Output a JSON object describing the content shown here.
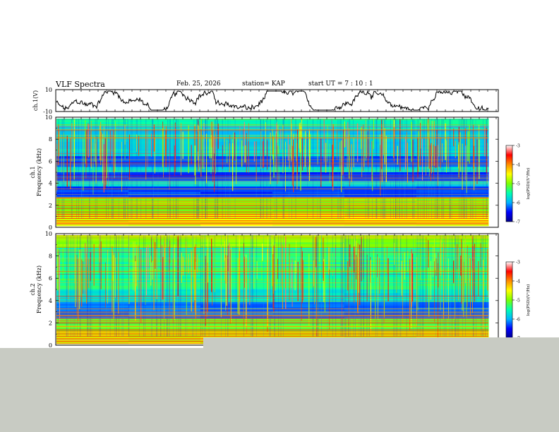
{
  "header": {
    "title": "VLF Spectra",
    "date": "Feb. 25, 2026",
    "station": "station= KAP",
    "start": "start  UT =   7 : 10 : 1"
  },
  "chart_data": [
    {
      "type": "line",
      "panel": "waveform",
      "ylabel": "ch.1(V)",
      "yticks": [
        "10",
        "-10"
      ],
      "ylim": [
        -10,
        10
      ],
      "color": "#000000"
    },
    {
      "type": "heatmap",
      "panel": "ch1",
      "ylabel_top": "ch.1",
      "ylabel": "Frequency (kHz)",
      "yticks": [
        "10",
        "8",
        "6",
        "4",
        "2",
        "0"
      ],
      "ylim": [
        0,
        10
      ],
      "colorbar": {
        "label": "log(PSD)(V²/Hz)",
        "ticks": [
          "-3",
          "-4",
          "-5",
          "-6",
          "-7"
        ],
        "range": [
          -7,
          -3
        ],
        "colors": [
          "#00008c",
          "#0000ff",
          "#00b4ff",
          "#00ffb0",
          "#7cff00",
          "#ffff00",
          "#ff8c00",
          "#ff0000",
          "#ffffff"
        ]
      }
    },
    {
      "type": "heatmap",
      "panel": "ch2",
      "ylabel_top": "ch.2",
      "ylabel": "Frequency (kHz)",
      "yticks": [
        "10",
        "8",
        "6",
        "4",
        "2",
        "0"
      ],
      "ylim": [
        0,
        10
      ],
      "colorbar": {
        "label": "log(PSD)(V²/Hz)",
        "ticks": [
          "-3",
          "-4",
          "-5",
          "-6",
          "-7"
        ],
        "range": [
          -7,
          -3
        ],
        "colors": [
          "#00008c",
          "#0000ff",
          "#00b4ff",
          "#00ffb0",
          "#7cff00",
          "#ffff00",
          "#ff8c00",
          "#ff0000",
          "#ffffff"
        ]
      }
    }
  ]
}
